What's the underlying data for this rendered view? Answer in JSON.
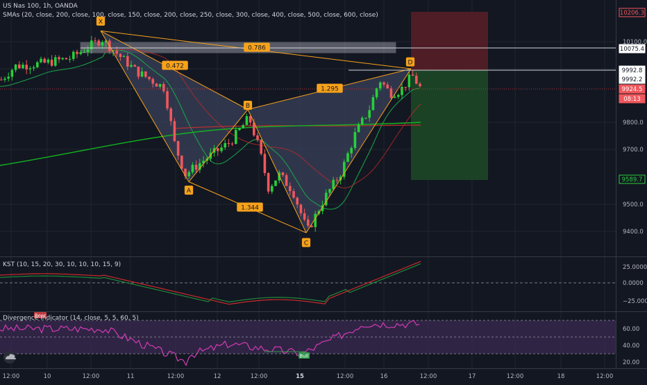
{
  "symbol_line": "US Nas 100, 1h, OANDA",
  "sma_line": "SMAs (20, close, 200, close, 100, close, 150, close, 200, close, 250, close, 300, close, 400, close, 500, close, 600, close)",
  "kst_line": "KST (10, 15, 20, 30, 10, 10, 10, 15, 9)",
  "div_line": "Divergence Indicator (14, close, 5, 5, 60, 5)",
  "colors": {
    "background": "#131722",
    "grid": "#1f2430",
    "bull_candle": "#26d03a",
    "bear_candle": "#f0575c",
    "pattern_line": "#f7a21b",
    "pattern_fill": "#39425a",
    "kst_line": "#cc2b2b",
    "kst_signal": "#1e8a3a",
    "rsi_line": "#d33bb4",
    "rsi_band": "#3b2a52",
    "sma_fast": "#1aa84a",
    "sma_slow": "#c02929",
    "sma_green": "#13b41f",
    "stop_zone": "#5a1e26",
    "target_zone": "#1e4a26"
  },
  "harmonic_pattern": {
    "points": [
      {
        "label": "X",
        "bar": 145,
        "price": 10140
      },
      {
        "label": "A",
        "bar": 272,
        "price": 9583
      },
      {
        "label": "B",
        "bar": 357,
        "price": 9850
      },
      {
        "label": "C",
        "bar": 441,
        "price": 9395
      },
      {
        "label": "D",
        "bar": 592,
        "price": 10000
      }
    ],
    "ratios": [
      {
        "label": "0.472",
        "between": "XB"
      },
      {
        "label": "1.344",
        "between": "AC"
      },
      {
        "label": "1.295",
        "between": "BD"
      },
      {
        "label": "0.786",
        "between": "XD"
      }
    ]
  },
  "price_scale": {
    "ticks": [
      "10100.0",
      "9800.0",
      "9700.0",
      "9500.0",
      "9400.0"
    ],
    "tags": [
      {
        "text": "10206.3",
        "kind": "stop"
      },
      {
        "text": "10075.4",
        "kind": "level"
      },
      {
        "text": "9992.8",
        "kind": "level"
      },
      {
        "text": "9992.2",
        "kind": "level"
      },
      {
        "text": "9924.5",
        "kind": "last"
      },
      {
        "text": "08:13",
        "kind": "timer"
      },
      {
        "text": "9589.7",
        "kind": "target"
      }
    ]
  },
  "kst_scale": {
    "ticks": [
      "25.0000",
      "0.0000",
      "−25.0000"
    ]
  },
  "rsi_scale": {
    "ticks": [
      "60.00",
      "40.00",
      "20.00"
    ]
  },
  "badges": {
    "bear": "Bear",
    "bull": "Bull"
  },
  "time_axis": {
    "labels": [
      "12:00",
      "10",
      "12:00",
      "11",
      "12:00",
      "12",
      "12:00",
      "15",
      "12:00",
      "16",
      "12:00",
      "17",
      "12:00",
      "18",
      "12:00"
    ],
    "bold_index": 7
  },
  "logo_icon": "cloud-logo-icon"
}
